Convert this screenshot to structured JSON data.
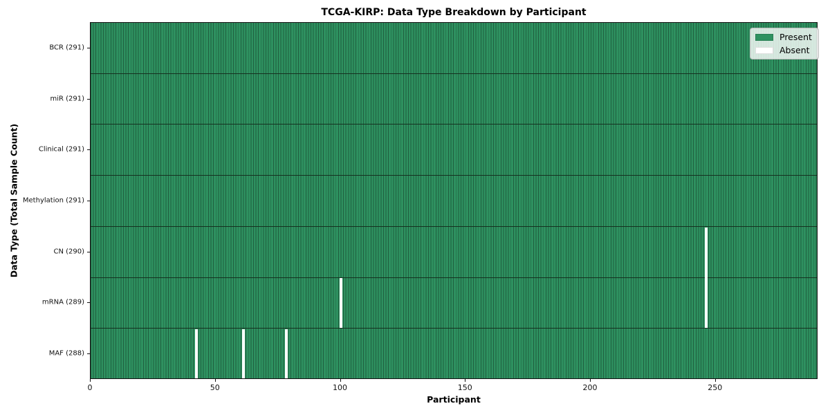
{
  "chart_data": {
    "type": "heatmap",
    "title": "TCGA-KIRP: Data Type Breakdown by Participant",
    "xlabel": "Participant",
    "ylabel": "Data Type (Total Sample Count)",
    "n_participants": 291,
    "x_range": [
      0,
      291
    ],
    "x_ticks": [
      0,
      50,
      100,
      150,
      200,
      250
    ],
    "grid": false,
    "rows": [
      {
        "label": "BCR (291)",
        "data_type": "BCR",
        "total_samples": 291,
        "absent_participants": []
      },
      {
        "label": "miR (291)",
        "data_type": "miR",
        "total_samples": 291,
        "absent_participants": []
      },
      {
        "label": "Clinical (291)",
        "data_type": "Clinical",
        "total_samples": 291,
        "absent_participants": []
      },
      {
        "label": "Methylation (291)",
        "data_type": "Methylation",
        "total_samples": 291,
        "absent_participants": []
      },
      {
        "label": "CN (290)",
        "data_type": "CN",
        "total_samples": 290,
        "absent_participants": [
          246
        ]
      },
      {
        "label": "mRNA (289)",
        "data_type": "mRNA",
        "total_samples": 289,
        "absent_participants": [
          100,
          246
        ]
      },
      {
        "label": "MAF (288)",
        "data_type": "MAF",
        "total_samples": 288,
        "absent_participants": [
          42,
          61,
          78
        ]
      }
    ],
    "legend": {
      "position": "upper right",
      "items": [
        {
          "label": "Present",
          "color": "#2e9160"
        },
        {
          "label": "Absent",
          "color": "#ffffff"
        }
      ]
    },
    "colors": {
      "present_fill": "#2e9160",
      "bar_edge": "#1f5e3e",
      "row_boundary": "#15301f",
      "absent_fill": "#ffffff",
      "axis": "#111111"
    }
  }
}
